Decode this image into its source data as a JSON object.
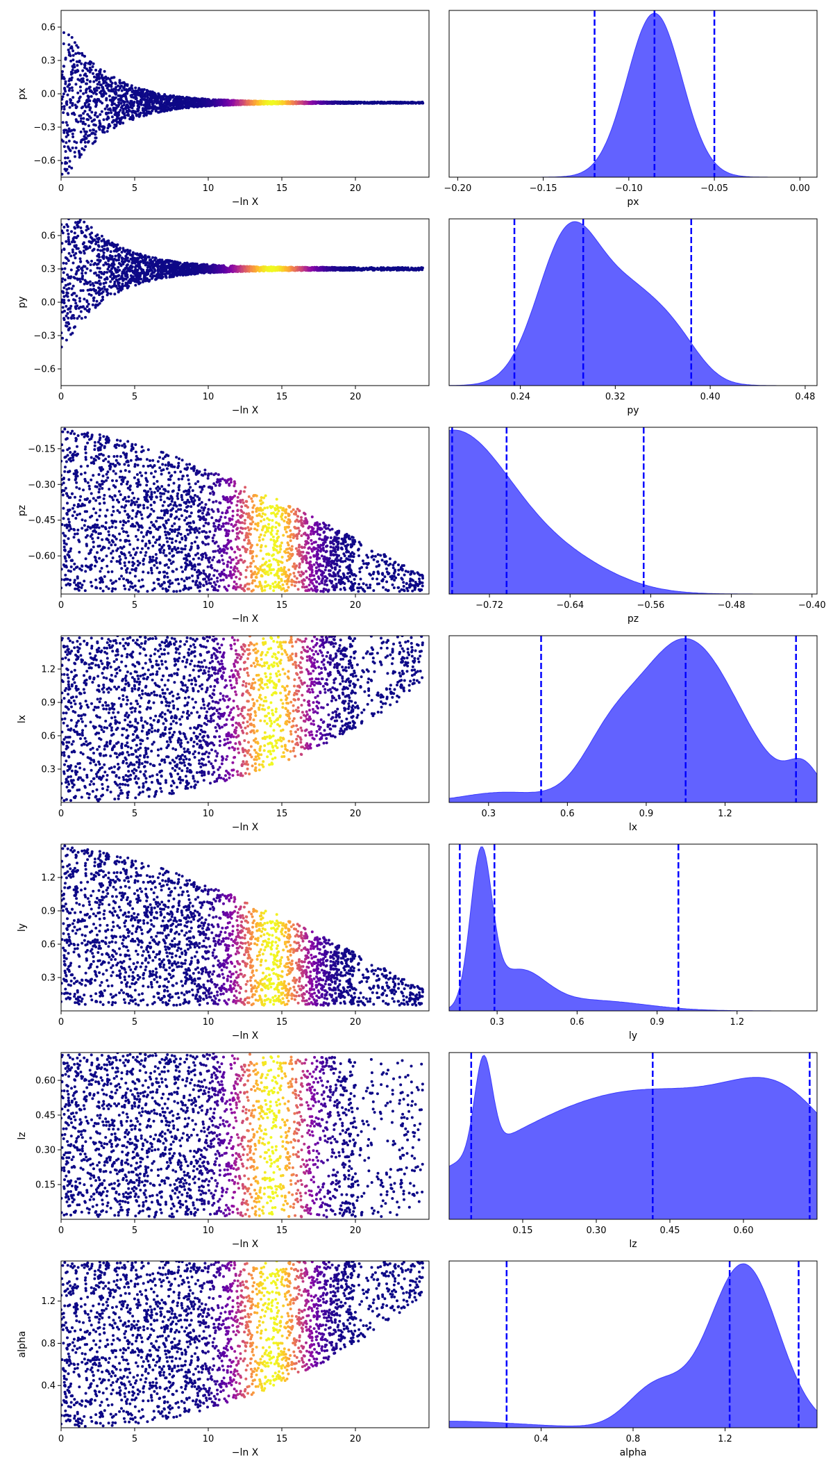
{
  "chart_data": [
    {
      "type": "scatter",
      "ylabel": "px",
      "xlabel": "−ln X",
      "xlim": [
        0,
        25
      ],
      "ylim": [
        -0.75,
        0.75
      ],
      "xticks": [
        0,
        5,
        10,
        15,
        20
      ],
      "yticks": [
        -0.6,
        -0.3,
        0.0,
        0.3,
        0.6
      ],
      "ytick_labels": [
        "−0.6",
        "−0.3",
        "0.0",
        "0.3",
        "0.6"
      ],
      "trace": {
        "center": -0.08,
        "spread_start": 0.75,
        "spread_end": 0.006,
        "tau": 3.0
      },
      "colormap": "plasma",
      "color_peak_x": 14.3
    },
    {
      "type": "area",
      "xlabel": "px",
      "xlim": [
        -0.205,
        0.01
      ],
      "xticks": [
        -0.2,
        -0.15,
        -0.1,
        -0.05,
        0.0
      ],
      "xtick_labels": [
        "−0.20",
        "−0.15",
        "−0.10",
        "−0.05",
        "0.00"
      ],
      "quantile_lines": [
        -0.12,
        -0.085,
        -0.05
      ],
      "density": [
        {
          "mu": -0.085,
          "sigma": 0.016,
          "w": 1.0
        }
      ],
      "fill_color": "#5a5aff"
    },
    {
      "type": "scatter",
      "ylabel": "py",
      "xlabel": "−ln X",
      "xlim": [
        0,
        25
      ],
      "ylim": [
        -0.75,
        0.75
      ],
      "xticks": [
        0,
        5,
        10,
        15,
        20
      ],
      "yticks": [
        -0.6,
        -0.3,
        0.0,
        0.3,
        0.6
      ],
      "ytick_labels": [
        "−0.6",
        "−0.3",
        "0.0",
        "0.3",
        "0.6"
      ],
      "trace": {
        "center": 0.3,
        "spread_start": 0.75,
        "spread_end": 0.012,
        "tau": 3.0
      },
      "colormap": "plasma",
      "color_peak_x": 14.3
    },
    {
      "type": "area",
      "xlabel": "py",
      "xlim": [
        0.18,
        0.49
      ],
      "xticks": [
        0.24,
        0.32,
        0.4,
        0.48
      ],
      "xtick_labels": [
        "0.24",
        "0.32",
        "0.40",
        "0.48"
      ],
      "quantile_lines": [
        0.235,
        0.293,
        0.384
      ],
      "density": [
        {
          "mu": 0.28,
          "sigma": 0.026,
          "w": 1.0
        },
        {
          "mu": 0.335,
          "sigma": 0.03,
          "w": 0.6
        },
        {
          "mu": 0.375,
          "sigma": 0.02,
          "w": 0.15
        }
      ],
      "fill_color": "#5a5aff"
    },
    {
      "type": "scatter",
      "ylabel": "pz",
      "xlabel": "−ln X",
      "xlim": [
        0,
        25
      ],
      "ylim": [
        -0.76,
        -0.06
      ],
      "xticks": [
        0,
        5,
        10,
        15,
        20
      ],
      "yticks": [
        -0.6,
        -0.45,
        -0.3,
        -0.15
      ],
      "ytick_labels": [
        "−0.60",
        "−0.45",
        "−0.30",
        "−0.15"
      ],
      "trace": {
        "lower": -0.75,
        "top_start": -0.06,
        "top_end": -0.68,
        "mode": "wedge"
      },
      "colormap": "plasma",
      "color_peak_x": 14.3
    },
    {
      "type": "area",
      "xlabel": "pz",
      "xlim": [
        -0.76,
        -0.395
      ],
      "xticks": [
        -0.72,
        -0.64,
        -0.56,
        -0.48,
        -0.4
      ],
      "xtick_labels": [
        "−0.72",
        "−0.64",
        "−0.56",
        "−0.48",
        "−0.40"
      ],
      "quantile_lines": [
        -0.757,
        -0.703,
        -0.567
      ],
      "density": [
        {
          "mu": -0.757,
          "sigma": 0.06,
          "w": 1.0
        },
        {
          "mu": -0.64,
          "sigma": 0.05,
          "w": 0.15
        }
      ],
      "fill_color": "#5a5aff"
    },
    {
      "type": "scatter",
      "ylabel": "lx",
      "xlabel": "−ln X",
      "xlim": [
        0,
        25
      ],
      "ylim": [
        0.0,
        1.5
      ],
      "xticks": [
        0,
        5,
        10,
        15,
        20
      ],
      "yticks": [
        0.3,
        0.6,
        0.9,
        1.2
      ],
      "ytick_labels": [
        "0.3",
        "0.6",
        "0.9",
        "1.2"
      ],
      "trace": {
        "upper": 1.5,
        "bottom_start": 0.0,
        "bottom_end": 1.05,
        "mode": "rise"
      },
      "colormap": "plasma",
      "color_peak_x": 14.3
    },
    {
      "type": "area",
      "xlabel": "lx",
      "xlim": [
        0.15,
        1.55
      ],
      "xticks": [
        0.3,
        0.6,
        0.9,
        1.2
      ],
      "xtick_labels": [
        "0.3",
        "0.6",
        "0.9",
        "1.2"
      ],
      "quantile_lines": [
        0.5,
        1.05,
        1.47
      ],
      "density": [
        {
          "mu": 1.05,
          "sigma": 0.2,
          "w": 1.0
        },
        {
          "mu": 0.75,
          "sigma": 0.1,
          "w": 0.2
        },
        {
          "mu": 1.5,
          "sigma": 0.06,
          "w": 0.18
        },
        {
          "mu": 0.35,
          "sigma": 0.15,
          "w": 0.06
        }
      ],
      "fill_color": "#5a5aff"
    },
    {
      "type": "scatter",
      "ylabel": "ly",
      "xlabel": "−ln X",
      "xlim": [
        0,
        25
      ],
      "ylim": [
        0.0,
        1.5
      ],
      "xticks": [
        0,
        5,
        10,
        15,
        20
      ],
      "yticks": [
        0.3,
        0.6,
        0.9,
        1.2
      ],
      "ytick_labels": [
        "0.3",
        "0.6",
        "0.9",
        "1.2"
      ],
      "trace": {
        "lower": 0.05,
        "top_start": 1.5,
        "top_end": 0.2,
        "mode": "fall"
      },
      "colormap": "plasma",
      "color_peak_x": 14.3
    },
    {
      "type": "area",
      "xlabel": "ly",
      "xlim": [
        0.12,
        1.5
      ],
      "xticks": [
        0.3,
        0.6,
        0.9,
        1.2
      ],
      "xtick_labels": [
        "0.3",
        "0.6",
        "0.9",
        "1.2"
      ],
      "quantile_lines": [
        0.16,
        0.29,
        0.98
      ],
      "density": [
        {
          "mu": 0.24,
          "sigma": 0.04,
          "w": 1.0
        },
        {
          "mu": 0.38,
          "sigma": 0.1,
          "w": 0.25
        },
        {
          "mu": 0.65,
          "sigma": 0.2,
          "w": 0.07
        }
      ],
      "fill_color": "#5a5aff"
    },
    {
      "type": "scatter",
      "ylabel": "lz",
      "xlabel": "−ln X",
      "xlim": [
        0,
        25
      ],
      "ylim": [
        0.0,
        0.72
      ],
      "xticks": [
        0,
        5,
        10,
        15,
        20
      ],
      "yticks": [
        0.15,
        0.3,
        0.45,
        0.6
      ],
      "ytick_labels": [
        "0.15",
        "0.30",
        "0.45",
        "0.60"
      ],
      "trace": {
        "lower": 0.01,
        "top_start": 0.72,
        "top_end": 0.68,
        "mode": "band"
      },
      "colormap": "plasma",
      "color_peak_x": 14.3
    },
    {
      "type": "area",
      "xlabel": "lz",
      "xlim": [
        0.0,
        0.75
      ],
      "xticks": [
        0.15,
        0.3,
        0.45,
        0.6
      ],
      "xtick_labels": [
        "0.15",
        "0.30",
        "0.45",
        "0.60"
      ],
      "quantile_lines": [
        0.045,
        0.415,
        0.735
      ],
      "density": [
        {
          "mu": 0.07,
          "sigma": 0.018,
          "w": 0.45
        },
        {
          "mu": 0.4,
          "sigma": 0.3,
          "w": 0.62
        },
        {
          "mu": 0.68,
          "sigma": 0.1,
          "w": 0.25
        }
      ],
      "fill_color": "#5a5aff"
    },
    {
      "type": "scatter",
      "ylabel": "alpha",
      "xlabel": "−ln X",
      "xlim": [
        0,
        25
      ],
      "ylim": [
        0.0,
        1.58
      ],
      "xticks": [
        0,
        5,
        10,
        15,
        20
      ],
      "yticks": [
        0.4,
        0.8,
        1.2
      ],
      "ytick_labels": [
        "0.4",
        "0.8",
        "1.2"
      ],
      "trace": {
        "upper": 1.58,
        "bottom_start": 0.0,
        "bottom_end": 1.25,
        "mode": "rise"
      },
      "colormap": "plasma",
      "color_peak_x": 14.3
    },
    {
      "type": "area",
      "xlabel": "alpha",
      "xlim": [
        0.0,
        1.6
      ],
      "xticks": [
        0.4,
        0.8,
        1.2
      ],
      "xtick_labels": [
        "0.4",
        "0.8",
        "1.2"
      ],
      "quantile_lines": [
        0.25,
        1.22,
        1.52
      ],
      "density": [
        {
          "mu": 1.28,
          "sigma": 0.15,
          "w": 1.0
        },
        {
          "mu": 0.9,
          "sigma": 0.12,
          "w": 0.25
        },
        {
          "mu": 0.0,
          "sigma": 0.3,
          "w": 0.04
        }
      ],
      "fill_color": "#5a5aff"
    }
  ]
}
